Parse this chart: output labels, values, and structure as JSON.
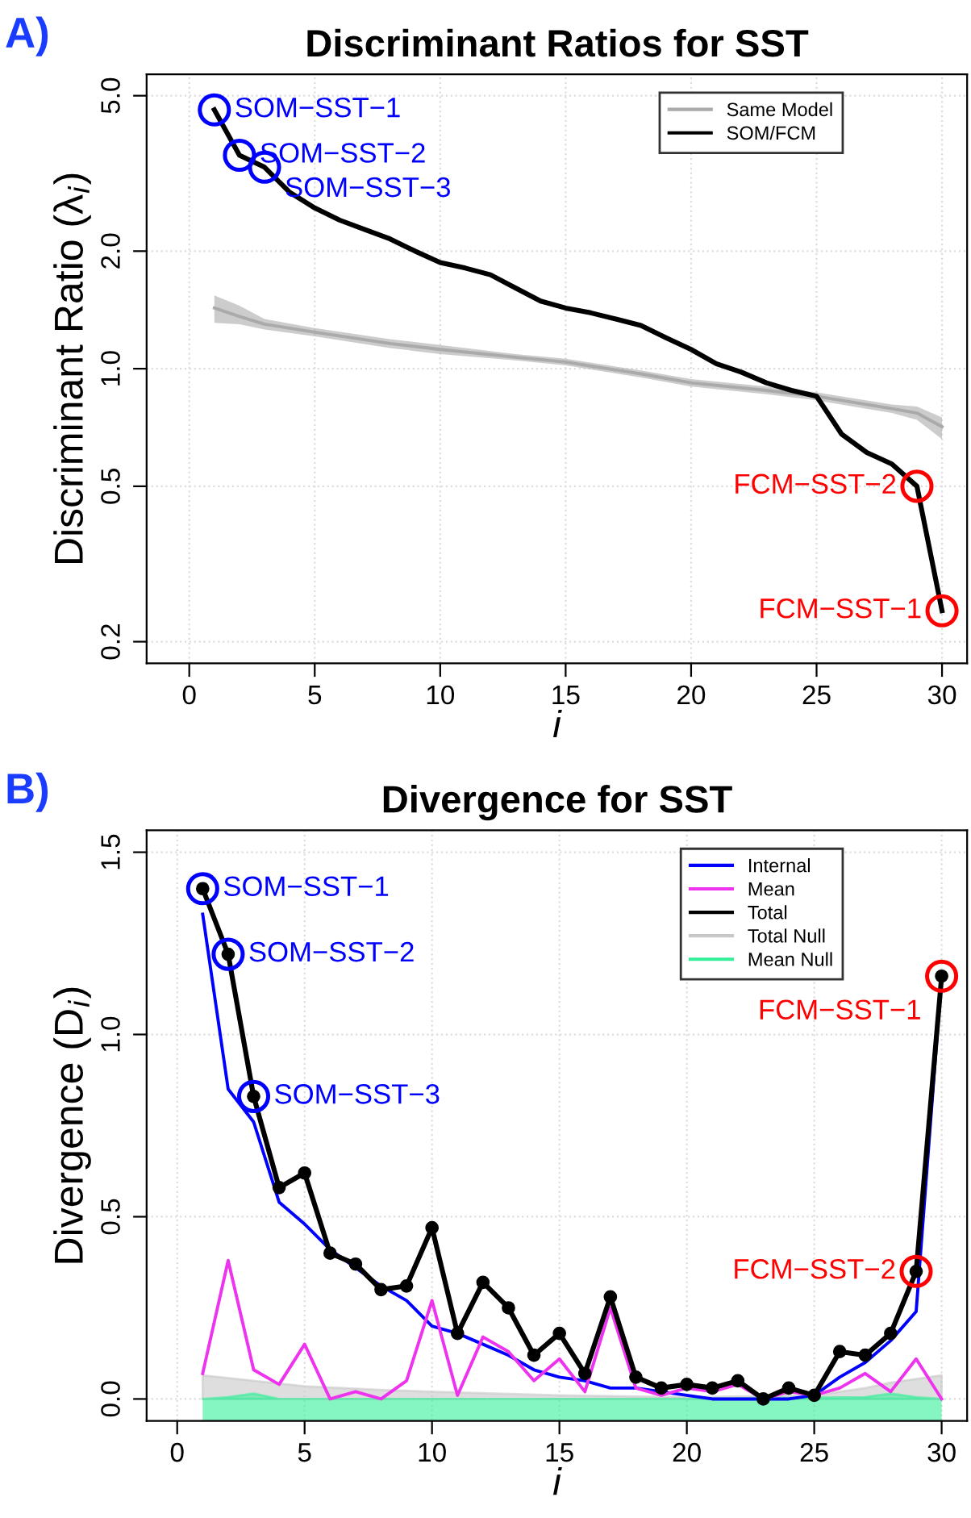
{
  "chart_data": [
    {
      "type": "line",
      "title": "Discriminant Ratios for SST",
      "xlabel": "i",
      "ylabel": "Discriminant Ratio (λ$_{i}$)",
      "log": "y",
      "x": [
        1,
        2,
        3,
        4,
        5,
        6,
        7,
        8,
        9,
        10,
        11,
        12,
        13,
        14,
        15,
        16,
        17,
        18,
        19,
        20,
        21,
        22,
        23,
        24,
        25,
        26,
        27,
        28,
        29,
        30
      ],
      "xlim": [
        -1.7,
        31.0
      ],
      "xticks": [
        0,
        5,
        10,
        15,
        20,
        25,
        30
      ],
      "ylim": [
        0.176,
        5.67
      ],
      "yticks": [
        {
          "value": 0.2,
          "label": "0.2"
        },
        {
          "value": 0.5,
          "label": "0.5"
        },
        {
          "value": 1,
          "label": "1.0"
        },
        {
          "value": 2,
          "label": "2.0"
        },
        {
          "value": 5,
          "label": "5.0"
        }
      ],
      "grid": true,
      "legend": "top right",
      "series": [
        {
          "name": "Same Model",
          "color": "#aaaaaa",
          "x": [
            1,
            2,
            3,
            5,
            8,
            10,
            13,
            15,
            18,
            20,
            23,
            25,
            28,
            29,
            30
          ],
          "values": [
            1.43,
            1.36,
            1.3,
            1.24,
            1.16,
            1.12,
            1.07,
            1.04,
            0.97,
            0.92,
            0.88,
            0.85,
            0.79,
            0.77,
            0.71
          ],
          "lower": [
            1.31,
            1.3,
            1.26,
            1.21,
            1.13,
            1.09,
            1.05,
            1.02,
            0.95,
            0.9,
            0.86,
            0.83,
            0.77,
            0.74,
            0.66
          ],
          "upper": [
            1.54,
            1.45,
            1.34,
            1.27,
            1.19,
            1.15,
            1.09,
            1.06,
            0.99,
            0.94,
            0.9,
            0.87,
            0.81,
            0.8,
            0.75
          ]
        },
        {
          "name": "SOM/FCM",
          "color": "#000000",
          "values": [
            4.6,
            3.52,
            3.28,
            2.83,
            2.58,
            2.4,
            2.27,
            2.15,
            2.0,
            1.87,
            1.81,
            1.74,
            1.61,
            1.49,
            1.43,
            1.39,
            1.34,
            1.29,
            1.2,
            1.12,
            1.03,
            0.98,
            0.92,
            0.88,
            0.85,
            0.68,
            0.61,
            0.57,
            0.5,
            0.24
          ]
        }
      ],
      "annotations": [
        "A)",
        {
          "text": "SOM−SST−1",
          "x": 1,
          "y": 4.6
        },
        {
          "text": "SOM−SST−2",
          "x": 2,
          "y": 3.52
        },
        {
          "text": "SOM−SST−3",
          "x": 3,
          "y": 3.28
        },
        {
          "text": "FCM−SST−2",
          "x": 29,
          "y": 0.5
        },
        {
          "text": "FCM−SST−1",
          "x": 30,
          "y": 0.24
        }
      ]
    },
    {
      "type": "line",
      "title": "Divergence for SST",
      "xlabel": "i",
      "ylabel": "Divergence (D$_{i}$)",
      "x": [
        1,
        2,
        3,
        4,
        5,
        6,
        7,
        8,
        9,
        10,
        11,
        12,
        13,
        14,
        15,
        16,
        17,
        18,
        19,
        20,
        21,
        22,
        23,
        24,
        25,
        26,
        27,
        28,
        29,
        30
      ],
      "xlim": [
        -1.2,
        31.0
      ],
      "xticks": [
        0,
        5,
        10,
        15,
        20,
        25,
        30
      ],
      "ylim": [
        -0.06,
        1.56
      ],
      "yticks": [
        {
          "value": 0,
          "label": "0.0"
        },
        {
          "value": 0.5,
          "label": "0.5"
        },
        {
          "value": 1,
          "label": "1.0"
        },
        {
          "value": 1.5,
          "label": "1.5"
        }
      ],
      "grid": true,
      "legend": "top right",
      "bands": [
        {
          "axis": "y",
          "from": -0.06,
          "to": 0,
          "color": "#33ee99"
        }
      ],
      "series": [
        {
          "name": "Internal",
          "color": "#0000ff",
          "values": [
            1.33,
            0.85,
            0.76,
            0.54,
            0.48,
            0.41,
            0.36,
            0.31,
            0.27,
            0.2,
            0.18,
            0.15,
            0.12,
            0.08,
            0.06,
            0.05,
            0.03,
            0.03,
            0.02,
            0.01,
            0.0,
            0.0,
            0.0,
            0.0,
            0.01,
            0.06,
            0.1,
            0.16,
            0.24,
            1.16
          ]
        },
        {
          "name": "Mean",
          "color": "#ee33ee",
          "values": [
            0.07,
            0.38,
            0.08,
            0.04,
            0.15,
            0.0,
            0.02,
            0.0,
            0.05,
            0.27,
            0.01,
            0.17,
            0.13,
            0.05,
            0.11,
            0.02,
            0.25,
            0.03,
            0.01,
            0.03,
            0.02,
            0.04,
            0.0,
            0.02,
            0.01,
            0.03,
            0.07,
            0.02,
            0.11,
            0.0
          ]
        },
        {
          "name": "Total",
          "color": "#000000",
          "marker": "circle",
          "values": [
            1.4,
            1.22,
            0.83,
            0.58,
            0.62,
            0.4,
            0.37,
            0.3,
            0.31,
            0.47,
            0.18,
            0.32,
            0.25,
            0.12,
            0.18,
            0.07,
            0.28,
            0.06,
            0.03,
            0.04,
            0.03,
            0.05,
            0.0,
            0.03,
            0.01,
            0.13,
            0.12,
            0.18,
            0.35,
            1.16
          ]
        },
        {
          "name": "Total Null",
          "type": "area",
          "color": "#c8c8c8",
          "x": [
            1,
            3,
            5,
            8,
            10,
            15,
            20,
            25,
            27,
            28,
            30
          ],
          "values": [
            0.065,
            0.05,
            0.035,
            0.025,
            0.02,
            0.01,
            0.005,
            0.01,
            0.03,
            0.045,
            0.065
          ]
        },
        {
          "name": "Mean Null",
          "type": "area",
          "color": "#33ee99",
          "x": [
            1,
            2,
            3,
            4,
            10,
            20,
            27,
            28,
            29,
            30
          ],
          "values": [
            0.0,
            0.005,
            0.015,
            0.0,
            0.0,
            0.0,
            0.005,
            0.015,
            0.005,
            0.0
          ]
        }
      ],
      "annotations": [
        "B)",
        {
          "text": "SOM−SST−1",
          "x": 1,
          "y": 1.4
        },
        {
          "text": "SOM−SST−2",
          "x": 2,
          "y": 1.22
        },
        {
          "text": "SOM−SST−3",
          "x": 3,
          "y": 0.83
        },
        {
          "text": "FCM−SST−1",
          "x": 30,
          "y": 1.16
        },
        {
          "text": "FCM−SST−2",
          "x": 29,
          "y": 0.35
        }
      ]
    }
  ]
}
